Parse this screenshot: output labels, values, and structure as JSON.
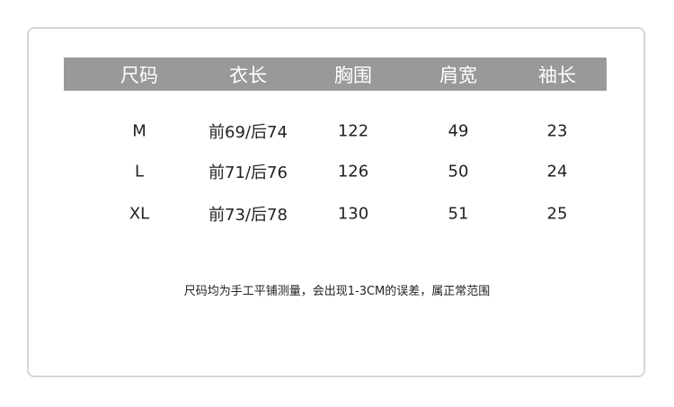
{
  "table": {
    "headers": [
      "尺码",
      "衣长",
      "胸围",
      "肩宽",
      "袖长"
    ],
    "rows": [
      [
        "M",
        "前69/后74",
        "122",
        "49",
        "23"
      ],
      [
        "L",
        "前71/后76",
        "126",
        "50",
        "24"
      ],
      [
        "XL",
        "前73/后78",
        "130",
        "51",
        "25"
      ]
    ]
  },
  "note": "尺码均为手工平铺测量，会出现1-3CM的误差，属正常范围",
  "colors": {
    "header_bg": "#999999",
    "header_text": "#ffffff",
    "border": "#d6d6d6"
  }
}
